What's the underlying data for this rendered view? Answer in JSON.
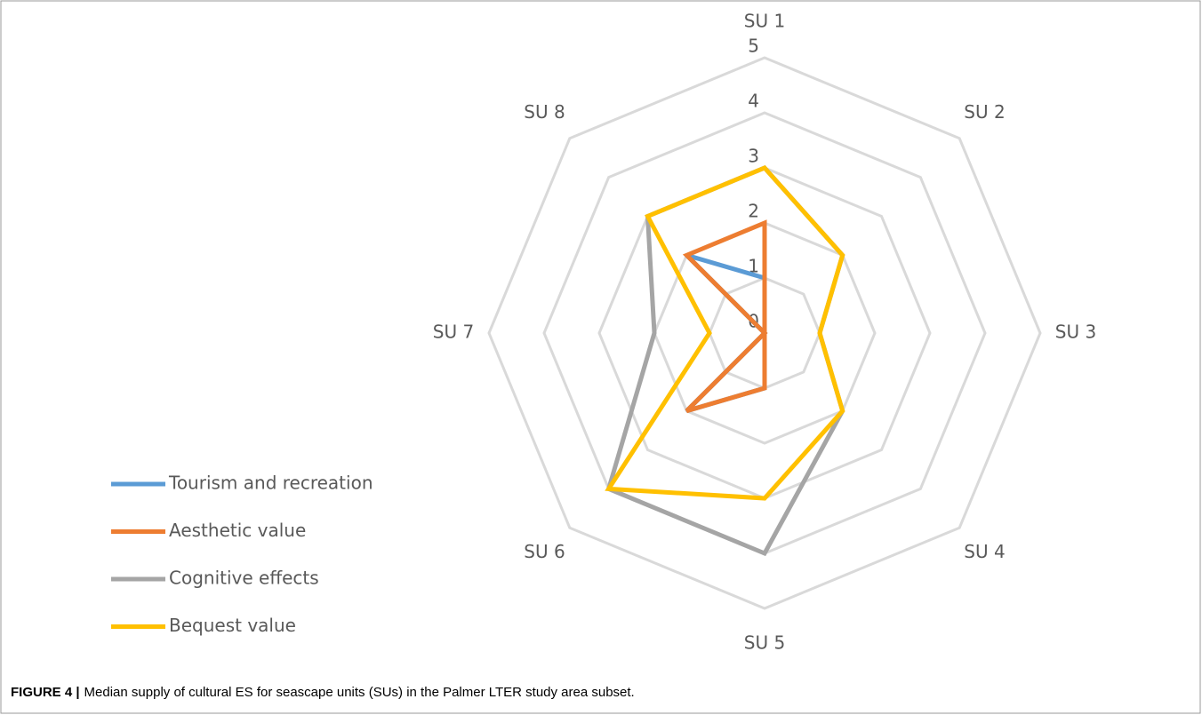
{
  "chart_data": {
    "type": "radar",
    "categories": [
      "SU 1",
      "SU 2",
      "SU 3",
      "SU 4",
      "SU 5",
      "SU 6",
      "SU 7",
      "SU 8"
    ],
    "series": [
      {
        "name": "Tourism and recreation",
        "color": "#5b9bd5",
        "values": [
          1,
          0,
          0,
          0,
          1,
          2,
          0,
          2
        ]
      },
      {
        "name": "Aesthetic value",
        "color": "#ed7d31",
        "values": [
          2,
          0,
          0,
          0,
          1,
          2,
          0,
          2
        ]
      },
      {
        "name": "Cognitive effects",
        "color": "#a5a5a5",
        "values": [
          3,
          2,
          1,
          2,
          4,
          4,
          2,
          3
        ]
      },
      {
        "name": "Bequest value",
        "color": "#ffc000",
        "values": [
          3,
          2,
          1,
          2,
          3,
          4,
          1,
          3
        ]
      }
    ],
    "ylim": [
      0,
      5
    ],
    "yticks": [
      0,
      1,
      2,
      3,
      4,
      5
    ],
    "grid": true,
    "legend": "left"
  },
  "caption": {
    "label": "FIGURE 4 |",
    "text": "Median supply of cultural ES for seascape units (SUs) in the Palmer LTER study area subset."
  }
}
